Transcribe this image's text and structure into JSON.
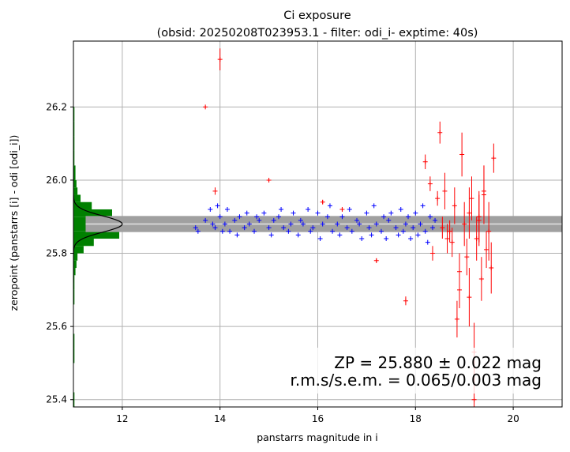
{
  "chart_data": {
    "type": "scatter",
    "title": "Ci exposure",
    "subtitle": "(obsid: 20250208T023953.1 - filter: odi_i- exptime: 40s)",
    "xlabel": "panstarrs magnitude in i",
    "ylabel": "zeropoint (panstarrs [i] - odi [odi_i])",
    "xlim": [
      11.0,
      21.0
    ],
    "ylim": [
      25.38,
      26.38
    ],
    "xticks": [
      "12",
      "14",
      "16",
      "18",
      "20"
    ],
    "yticks": [
      "25.4",
      "25.6",
      "25.8",
      "26.0",
      "26.2"
    ],
    "grid": true,
    "zeropoint": 25.88,
    "zp_band": [
      25.858,
      25.902
    ],
    "annotations": [
      "ZP = 25.880 ± 0.022 mag",
      "r.m.s/s.e.m. = 0.065/0.003 mag"
    ],
    "colors": {
      "used": "#0000ff",
      "rejected": "#ff0000",
      "histogram": "#008000",
      "band": "#a0a0a0",
      "zp_line": "#d3d3d3",
      "gauss": "#000000"
    },
    "series": [
      {
        "role": "used",
        "marker": "+",
        "x": [
          13.5,
          13.55,
          13.7,
          13.8,
          13.85,
          13.9,
          13.95,
          14.0,
          14.05,
          14.1,
          14.15,
          14.2,
          14.3,
          14.35,
          14.4,
          14.5,
          14.55,
          14.6,
          14.7,
          14.75,
          14.8,
          14.9,
          15.0,
          15.05,
          15.1,
          15.2,
          15.25,
          15.3,
          15.4,
          15.45,
          15.5,
          15.6,
          15.65,
          15.7,
          15.8,
          15.85,
          15.9,
          16.0,
          16.05,
          16.1,
          16.2,
          16.25,
          16.3,
          16.4,
          16.45,
          16.5,
          16.6,
          16.65,
          16.7,
          16.8,
          16.85,
          16.9,
          17.0,
          17.05,
          17.1,
          17.15,
          17.2,
          17.3,
          17.35,
          17.4,
          17.45,
          17.5,
          17.6,
          17.65,
          17.7,
          17.75,
          17.8,
          17.85,
          17.9,
          17.95,
          18.0,
          18.05,
          18.1,
          18.15,
          18.2,
          18.25,
          18.3,
          18.35,
          18.4
        ],
        "y": [
          25.87,
          25.86,
          25.89,
          25.92,
          25.88,
          25.87,
          25.93,
          25.9,
          25.86,
          25.88,
          25.92,
          25.86,
          25.89,
          25.85,
          25.9,
          25.87,
          25.91,
          25.88,
          25.86,
          25.9,
          25.89,
          25.91,
          25.87,
          25.85,
          25.89,
          25.9,
          25.92,
          25.87,
          25.86,
          25.88,
          25.91,
          25.85,
          25.89,
          25.88,
          25.92,
          25.86,
          25.87,
          25.91,
          25.84,
          25.88,
          25.9,
          25.93,
          25.86,
          25.88,
          25.85,
          25.9,
          25.87,
          25.92,
          25.86,
          25.89,
          25.88,
          25.84,
          25.91,
          25.87,
          25.85,
          25.93,
          25.88,
          25.86,
          25.9,
          25.84,
          25.89,
          25.91,
          25.87,
          25.85,
          25.92,
          25.86,
          25.88,
          25.9,
          25.84,
          25.87,
          25.91,
          25.85,
          25.88,
          25.93,
          25.86,
          25.83,
          25.9,
          25.87,
          25.89
        ]
      },
      {
        "role": "rejected",
        "marker": "+",
        "x": [
          13.7,
          13.9,
          14.0,
          15.0,
          16.5,
          16.1,
          17.2,
          17.8,
          18.2,
          18.3,
          18.5,
          18.55,
          18.6,
          18.7,
          18.75,
          18.8,
          18.9,
          18.95,
          19.0,
          19.05,
          19.1,
          19.15,
          19.2,
          19.25,
          19.3,
          19.35,
          19.4,
          19.45,
          19.5,
          19.55,
          19.6,
          19.2,
          18.9,
          19.3,
          18.45,
          18.35,
          18.65,
          18.85,
          19.1,
          19.4
        ],
        "y": [
          26.2,
          25.97,
          26.33,
          26.0,
          25.92,
          25.94,
          25.78,
          25.67,
          26.05,
          25.99,
          26.13,
          25.87,
          25.97,
          25.86,
          25.83,
          25.93,
          25.7,
          26.07,
          25.88,
          25.79,
          25.91,
          25.95,
          25.53,
          25.84,
          25.89,
          25.73,
          25.96,
          25.81,
          25.86,
          25.76,
          26.06,
          25.4,
          25.75,
          25.9,
          25.95,
          25.8,
          25.84,
          25.62,
          25.68,
          25.97
        ],
        "yerr": [
          0.003,
          0.01,
          0.03,
          0.003,
          0.005,
          0.005,
          0.006,
          0.012,
          0.02,
          0.02,
          0.03,
          0.03,
          0.05,
          0.03,
          0.04,
          0.05,
          0.05,
          0.06,
          0.06,
          0.05,
          0.07,
          0.06,
          0.08,
          0.06,
          0.07,
          0.06,
          0.08,
          0.05,
          0.08,
          0.07,
          0.04,
          0.1,
          0.05,
          0.07,
          0.02,
          0.02,
          0.04,
          0.05,
          0.08,
          0.07
        ]
      }
    ],
    "histogram": {
      "edges": [
        25.38,
        25.42,
        25.46,
        25.5,
        25.54,
        25.58,
        25.62,
        25.66,
        25.7,
        25.74,
        25.76,
        25.78,
        25.8,
        25.82,
        25.84,
        25.86,
        25.88,
        25.9,
        25.92,
        25.94,
        25.96,
        25.98,
        26.0,
        26.04,
        26.08,
        26.12,
        26.16,
        26.2
      ],
      "counts": [
        1,
        0,
        0,
        1,
        1,
        0,
        0,
        1,
        1,
        2,
        3,
        4,
        10,
        20,
        45,
        40,
        48,
        38,
        18,
        7,
        4,
        3,
        2,
        1,
        1,
        1,
        1
      ]
    }
  }
}
